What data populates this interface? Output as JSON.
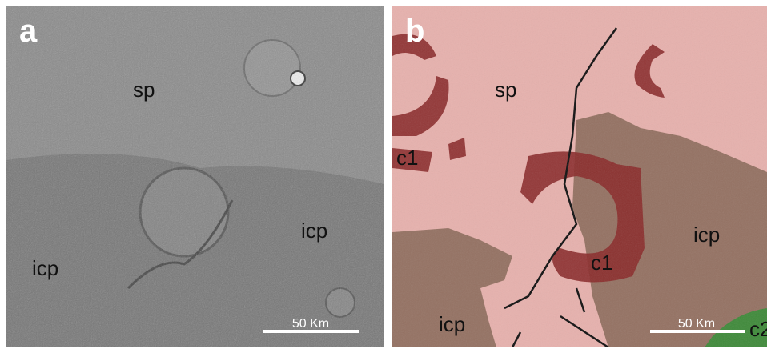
{
  "panels": [
    {
      "label": "a",
      "units": [
        "sp",
        "icp",
        "icp"
      ],
      "scale_bar": "50 Km"
    },
    {
      "label": "b",
      "units": [
        "sp",
        "c1",
        "icp",
        "c1",
        "icp",
        "c2"
      ],
      "scale_bar": "50 Km"
    }
  ]
}
